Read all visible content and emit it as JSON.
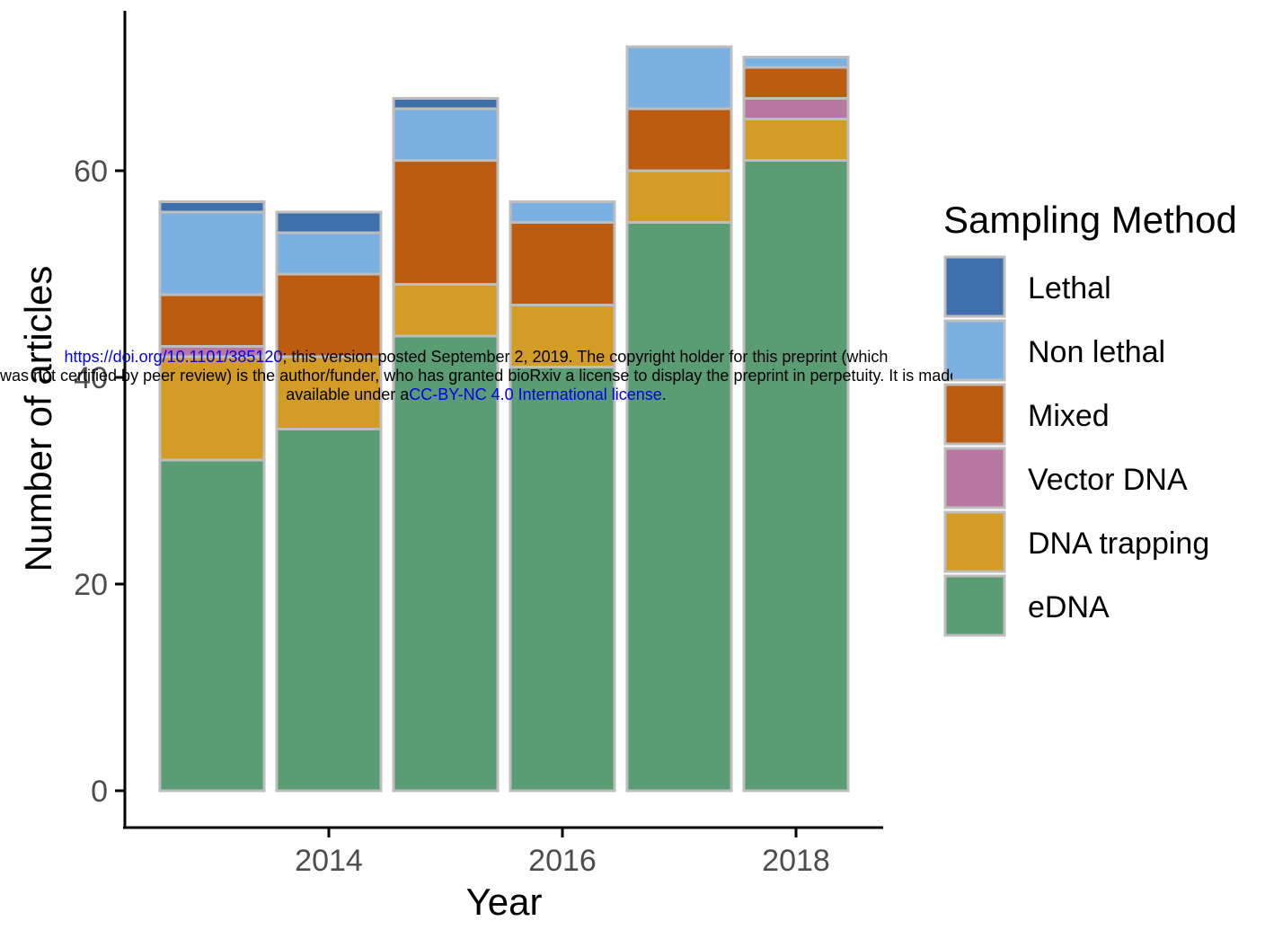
{
  "chart_data": {
    "type": "bar",
    "stacked": true,
    "categories": [
      "2013",
      "2014",
      "2015",
      "2016",
      "2017",
      "2018"
    ],
    "xlabel": "Year",
    "ylabel": "Number of articles",
    "x_ticks": [
      "2014",
      "2016",
      "2018"
    ],
    "y_ticks": [
      "0",
      "20",
      "40",
      "60"
    ],
    "ylim": [
      0,
      75
    ],
    "series": [
      {
        "name": "eDNA",
        "color": "#5a9c74",
        "values": [
          32,
          35,
          44,
          41,
          55,
          61
        ]
      },
      {
        "name": "DNA trapping",
        "color": "#d39c24",
        "values": [
          10,
          7,
          5,
          6,
          5,
          4
        ]
      },
      {
        "name": "Vector DNA",
        "color": "#b877a1",
        "values": [
          1,
          0,
          0,
          0,
          0,
          2
        ]
      },
      {
        "name": "Mixed",
        "color": "#bb5c11",
        "values": [
          5,
          8,
          12,
          8,
          6,
          3
        ]
      },
      {
        "name": "Non lethal",
        "color": "#7ab1e2",
        "values": [
          8,
          4,
          5,
          2,
          6,
          1
        ]
      },
      {
        "name": "Lethal",
        "color": "#3f6fab",
        "values": [
          1,
          2,
          1,
          0,
          0,
          0
        ]
      }
    ],
    "legend": {
      "title": "Sampling Method",
      "position": "right",
      "items": [
        "Lethal",
        "Non lethal",
        "Mixed",
        "Vector DNA",
        "DNA trapping",
        "eDNA"
      ]
    },
    "grid": false
  },
  "watermark": {
    "line1_link": "https://doi.org/10.1101/385120",
    "line1_text": "; this version posted September 2, 2019. The copyright holder for this preprint (which",
    "line2_text": "was not certified by peer review) is the author/funder, who has granted bioRxiv a license to display the preprint in perpetuity. It is made",
    "line3_prefix": "available under a",
    "line3_link": "CC-BY-NC 4.0 International license",
    "line3_suffix": "."
  }
}
